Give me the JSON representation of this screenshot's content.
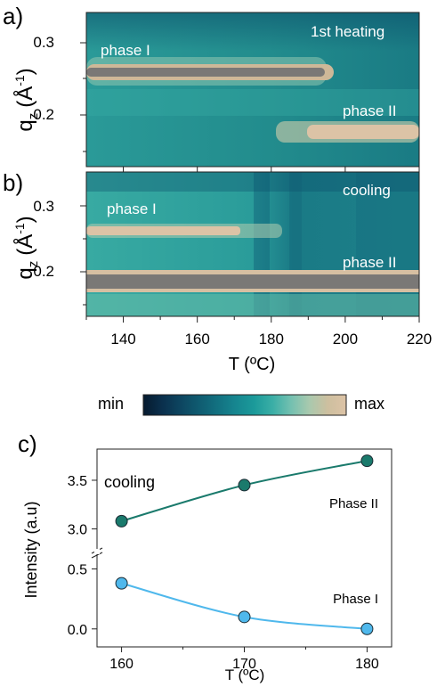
{
  "panel_a": {
    "letter": "a)",
    "annotation": "1st heating",
    "phase1_label": "phase I",
    "phase2_label": "phase II"
  },
  "panel_b": {
    "letter": "b)",
    "annotation": "cooling",
    "phase1_label": "phase I",
    "phase2_label": "phase II"
  },
  "map_axes": {
    "ylabel_main": "q",
    "ylabel_sub": "z",
    "ylabel_unit": "(Å",
    "ylabel_exp": "-1",
    "ylabel_close": ")",
    "xlabel": "T (ºC)",
    "xticks": [
      "140",
      "160",
      "180",
      "200",
      "220"
    ],
    "yticks_a": [
      "0.3",
      "0.2"
    ],
    "yticks_b": [
      "0.3",
      "0.2"
    ]
  },
  "colorbar": {
    "min_label": "min",
    "max_label": "max",
    "colors": [
      "#061a2e",
      "#0a2f4c",
      "#0d4560",
      "#0f5b70",
      "#127080",
      "#168690",
      "#1b9a9a",
      "#3aaea6",
      "#73c0b0",
      "#a9c9ae",
      "#cdbf9f",
      "#ddc3a6"
    ]
  },
  "panel_c": {
    "letter": "c)",
    "annotation": "cooling",
    "series_labels": [
      "Phase II",
      "Phase I"
    ],
    "colors": {
      "phase2": "#1a7a6c",
      "phase1": "#4fb8ec"
    }
  },
  "chart_data": [
    {
      "type": "heatmap",
      "panel": "a",
      "annotation": "1st heating",
      "xlabel": "T (ºC)",
      "ylabel": "qz (Å-1)",
      "xlim": [
        130,
        220
      ],
      "ylim": [
        0.135,
        0.355
      ],
      "xticks": [
        140,
        160,
        180,
        200,
        220
      ],
      "yticks": [
        0.2,
        0.3
      ],
      "labels": [
        {
          "text": "phase I",
          "x": 144,
          "y": 0.283
        },
        {
          "text": "phase II",
          "x": 209,
          "y": 0.199
        },
        {
          "text": "1st heating",
          "x": 207,
          "y": 0.33
        }
      ],
      "bands": [
        {
          "name": "phase I",
          "q": 0.262,
          "t_start": 130,
          "t_end": 196
        },
        {
          "name": "phase II",
          "q": 0.174,
          "t_start": 188,
          "t_end": 220
        }
      ]
    },
    {
      "type": "heatmap",
      "panel": "b",
      "annotation": "cooling",
      "xlabel": "T (ºC)",
      "ylabel": "qz (Å-1)",
      "xlim": [
        130,
        220
      ],
      "ylim": [
        0.135,
        0.355
      ],
      "xticks": [
        140,
        160,
        180,
        200,
        220
      ],
      "yticks": [
        0.2,
        0.3
      ],
      "labels": [
        {
          "text": "phase I",
          "x": 145,
          "y": 0.296
        },
        {
          "text": "phase II",
          "x": 209,
          "y": 0.215
        },
        {
          "text": "cooling",
          "x": 212,
          "y": 0.325
        }
      ],
      "bands": [
        {
          "name": "phase I",
          "q": 0.268,
          "t_start": 130,
          "t_end": 171
        },
        {
          "name": "phase II",
          "q": 0.188,
          "t_start": 130,
          "t_end": 220
        }
      ]
    },
    {
      "type": "line",
      "panel": "c",
      "annotation": "cooling",
      "xlabel": "T (ºC)",
      "ylabel": "Intensity (a.u)",
      "x": [
        160,
        170,
        180
      ],
      "xlim": [
        158,
        182
      ],
      "xticks": [
        160,
        170,
        180
      ],
      "upper_ylim": [
        2.85,
        3.82
      ],
      "upper_yticks": [
        3.0,
        3.5
      ],
      "lower_ylim": [
        -0.15,
        0.6
      ],
      "lower_yticks": [
        0.0,
        0.5
      ],
      "series": [
        {
          "name": "Phase II",
          "values": [
            3.08,
            3.45,
            3.7
          ],
          "color": "#1a7a6c",
          "axis": "upper"
        },
        {
          "name": "Phase I",
          "values": [
            0.38,
            0.1,
            0.0
          ],
          "color": "#4fb8ec",
          "axis": "lower"
        }
      ]
    }
  ]
}
